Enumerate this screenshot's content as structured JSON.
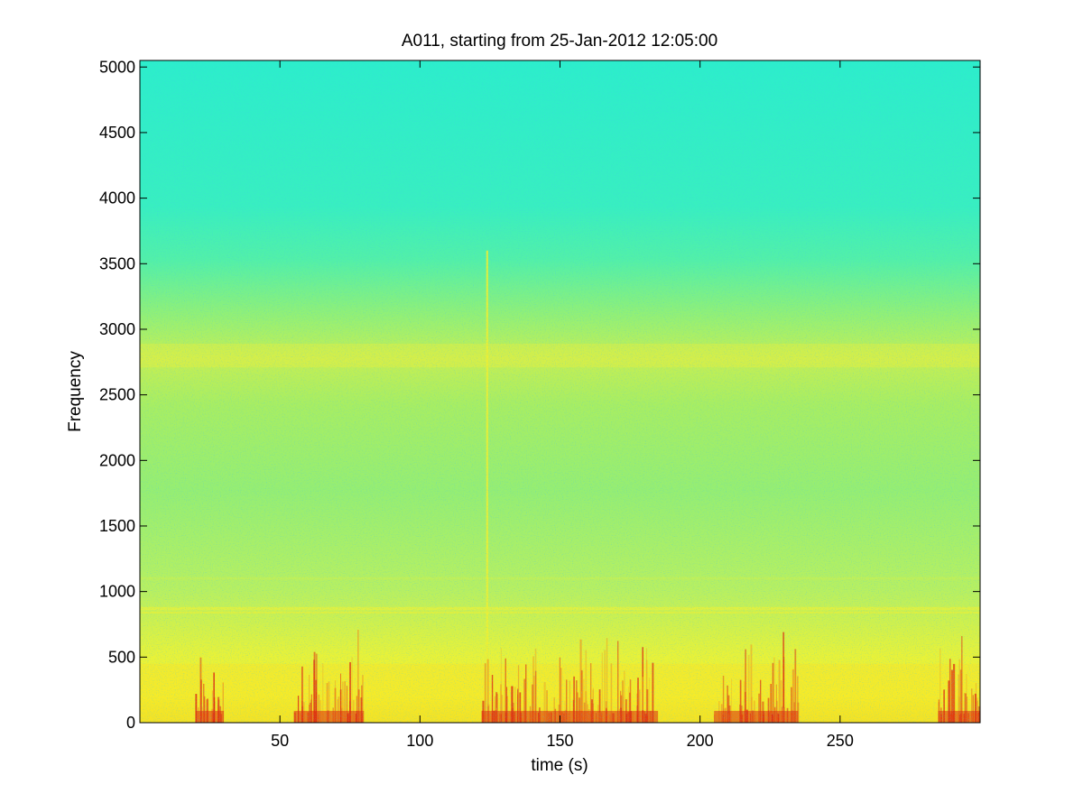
{
  "chart_data": {
    "type": "heatmap",
    "title": "A011, starting from 25-Jan-2012 12:05:00",
    "xlabel": "time (s)",
    "ylabel": "Frequency",
    "xlim": [
      0,
      300
    ],
    "ylim": [
      0,
      5050
    ],
    "xticks": [
      50,
      100,
      150,
      200,
      250
    ],
    "yticks": [
      0,
      500,
      1000,
      1500,
      2000,
      2500,
      3000,
      3500,
      4000,
      4500,
      5000
    ],
    "xtick_labels": [
      "50",
      "100",
      "150",
      "200",
      "250"
    ],
    "ytick_labels": [
      "0",
      "500",
      "1000",
      "1500",
      "2000",
      "2500",
      "3000",
      "3500",
      "4000",
      "4500",
      "5000"
    ],
    "colormap": "jet",
    "grid": false,
    "colors": {
      "background_high_freq": "#2ef0c8",
      "mid_band": "#9cf06a",
      "low_band": "#f2f23a",
      "transients": "#e0200a"
    },
    "features": {
      "horizontal_bands_hz": [
        2800,
        870,
        840,
        1100
      ],
      "strong_vertical_event_s": 124,
      "transient_clusters_s": [
        [
          20,
          30
        ],
        [
          55,
          80
        ],
        [
          122,
          185
        ],
        [
          205,
          235
        ],
        [
          285,
          300
        ]
      ]
    }
  }
}
